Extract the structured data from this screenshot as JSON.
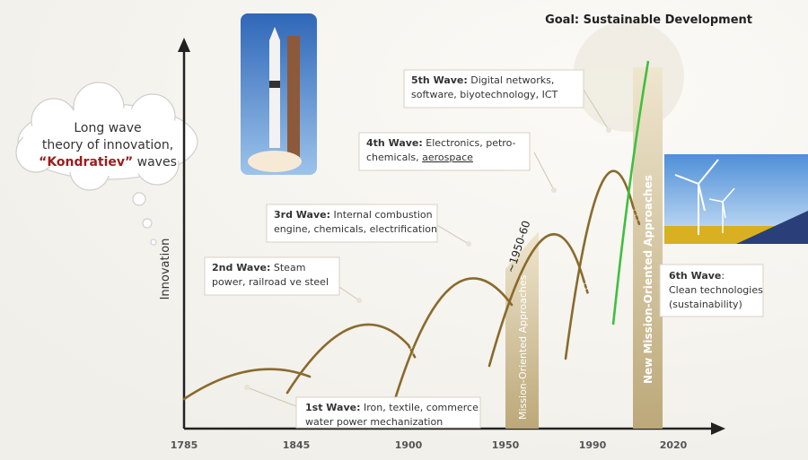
{
  "title": "Goal: Sustainable Development",
  "cloud": {
    "lines": [
      "Long wave",
      "theory of innovation,"
    ],
    "highlight": "“Kondratiev”",
    "suffix": " waves"
  },
  "axis": {
    "y_label": "Innovation",
    "x_ticks": [
      "1785",
      "1845",
      "1900",
      "1950",
      "1990",
      "2020"
    ]
  },
  "waves": [
    {
      "head": "1st Wave:",
      "lines": [
        " Iron, textile, commerce",
        "water power mechanization"
      ]
    },
    {
      "head": "2nd Wave:",
      "lines": [
        " Steam",
        "power, railroad ve steel"
      ]
    },
    {
      "head": "3rd Wave:",
      "lines": [
        " Internal combustion",
        "engine, chemicals, electrification"
      ]
    },
    {
      "head": "4th Wave:",
      "lines": [
        " Electronics, petro-",
        "chemicals, "
      ],
      "underlined": "aerospace"
    },
    {
      "head": "5th Wave:",
      "lines": [
        " Digital networks,",
        "software, biyotechnology, ICT"
      ]
    },
    {
      "head": "6th Wave",
      "lines": [
        ":",
        "Clean technologies",
        "(sustainability)"
      ]
    }
  ],
  "annotation": "~1950-60",
  "bands": [
    "Mission-Oriented Approaches",
    "New Mission-Oriented Approaches"
  ]
}
